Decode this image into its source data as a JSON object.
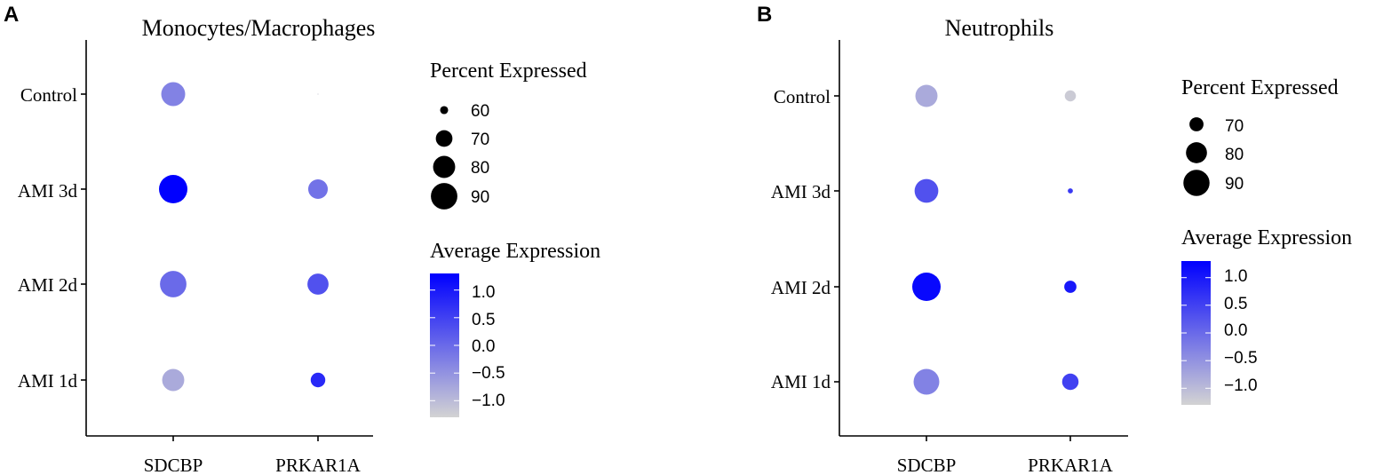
{
  "colors": {
    "low": "#d3d3d3",
    "high": "#0000ff",
    "axis": "#000000",
    "background": "#ffffff"
  },
  "chart_data": [
    {
      "panel_label": "A",
      "type": "scatter",
      "subtype": "dot_plot",
      "title": "Monocytes/Macrophages",
      "xlabel": "",
      "ylabel": "",
      "categories_x": [
        "SDCBP",
        "PRKAR1A"
      ],
      "categories_y": [
        "Control",
        "AMI 3d",
        "AMI 2d",
        "AMI 1d"
      ],
      "points": [
        {
          "x": "SDCBP",
          "y": "Control",
          "pct": 84,
          "avg": -0.3
        },
        {
          "x": "SDCBP",
          "y": "AMI 3d",
          "pct": 95,
          "avg": 1.3
        },
        {
          "x": "SDCBP",
          "y": "AMI 2d",
          "pct": 90,
          "avg": 0.0
        },
        {
          "x": "SDCBP",
          "y": "AMI 1d",
          "pct": 80,
          "avg": -0.8
        },
        {
          "x": "PRKAR1A",
          "y": "Control",
          "pct": 57,
          "avg": -1.2
        },
        {
          "x": "PRKAR1A",
          "y": "AMI 3d",
          "pct": 75,
          "avg": -0.1
        },
        {
          "x": "PRKAR1A",
          "y": "AMI 2d",
          "pct": 78,
          "avg": 0.3
        },
        {
          "x": "PRKAR1A",
          "y": "AMI 1d",
          "pct": 67,
          "avg": 0.8
        }
      ],
      "size_legend": {
        "title": "Percent Expressed",
        "breaks": [
          60,
          70,
          80,
          90
        ],
        "labels": [
          "60",
          "70",
          "80",
          "90"
        ]
      },
      "color_legend": {
        "title": "Average Expression",
        "range": [
          -1.3,
          1.3
        ],
        "breaks": [
          1.0,
          0.5,
          0.0,
          -0.5,
          -1.0
        ],
        "labels": [
          "1.0",
          "0.5",
          "0.0",
          "−0.5",
          "−1.0"
        ]
      },
      "size_range_pct": [
        57,
        95
      ],
      "legend_position": "right"
    },
    {
      "panel_label": "B",
      "type": "scatter",
      "subtype": "dot_plot",
      "title": "Neutrophils",
      "xlabel": "",
      "ylabel": "",
      "categories_x": [
        "SDCBP",
        "PRKAR1A"
      ],
      "categories_y": [
        "Control",
        "AMI 3d",
        "AMI 2d",
        "AMI 1d"
      ],
      "points": [
        {
          "x": "SDCBP",
          "y": "Control",
          "pct": 82,
          "avg": -0.8
        },
        {
          "x": "SDCBP",
          "y": "AMI 3d",
          "pct": 85,
          "avg": 0.3
        },
        {
          "x": "SDCBP",
          "y": "AMI 2d",
          "pct": 95,
          "avg": 1.2
        },
        {
          "x": "SDCBP",
          "y": "AMI 1d",
          "pct": 89,
          "avg": -0.3
        },
        {
          "x": "PRKAR1A",
          "y": "Control",
          "pct": 67,
          "avg": -1.2
        },
        {
          "x": "PRKAR1A",
          "y": "AMI 3d",
          "pct": 63,
          "avg": 0.6
        },
        {
          "x": "PRKAR1A",
          "y": "AMI 2d",
          "pct": 68,
          "avg": 1.0
        },
        {
          "x": "PRKAR1A",
          "y": "AMI 1d",
          "pct": 73,
          "avg": 0.5
        }
      ],
      "size_legend": {
        "title": "Percent Expressed",
        "breaks": [
          70,
          80,
          90
        ],
        "labels": [
          "70",
          "80",
          "90"
        ]
      },
      "color_legend": {
        "title": "Average Expression",
        "range": [
          -1.3,
          1.3
        ],
        "breaks": [
          1.0,
          0.5,
          0.0,
          -0.5,
          -1.0
        ],
        "labels": [
          "1.0",
          "0.5",
          "0.0",
          "−0.5",
          "−1.0"
        ]
      },
      "size_range_pct": [
        62,
        95
      ],
      "legend_position": "right"
    }
  ]
}
